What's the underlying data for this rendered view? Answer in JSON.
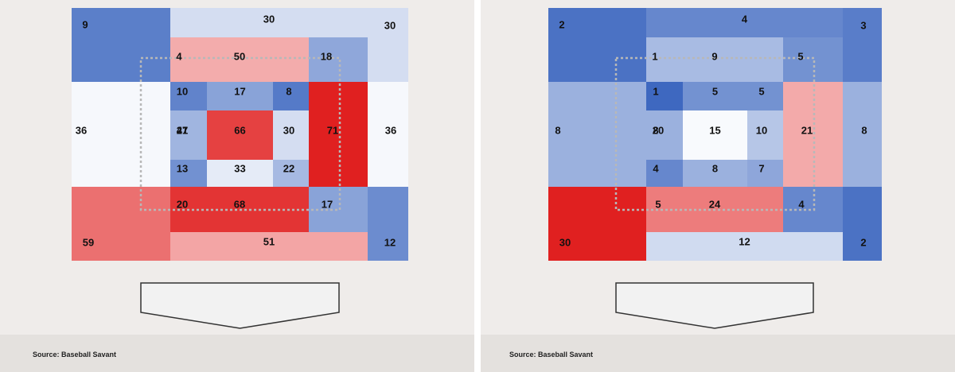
{
  "source_label": "Source: Baseball Savant",
  "colors": {
    "background": "#efecea",
    "footer": "#e4e1de",
    "scale_low": "#3e68c0",
    "scale_mid": "#ffffff",
    "scale_high": "#e02020",
    "strike_zone_outline": "#b8b8b8",
    "home_plate_fill": "#f2f2f2",
    "home_plate_stroke": "#333333"
  },
  "chart_data": [
    {
      "type": "heatmap",
      "title": "",
      "grid": false,
      "outer_zones": {
        "top_left": 9,
        "top_center": 30,
        "top_right": 30,
        "left": 36,
        "right": 36,
        "bottom_left": 59,
        "bottom_center": 51,
        "bottom_right": 12
      },
      "ring_zones": {
        "top_left": 4,
        "top_center": 50,
        "top_right": 18,
        "left": 47,
        "right": 71,
        "bottom_left": 20,
        "bottom_center": 68,
        "bottom_right": 17
      },
      "inner_zones": [
        [
          10,
          17,
          8
        ],
        [
          21,
          66,
          30
        ],
        [
          13,
          33,
          22
        ]
      ],
      "color_scale": [
        4,
        71
      ]
    },
    {
      "type": "heatmap",
      "title": "",
      "grid": false,
      "outer_zones": {
        "top_left": 2,
        "top_center": 4,
        "top_right": 3,
        "left": 8,
        "right": 8,
        "bottom_left": 30,
        "bottom_center": 12,
        "bottom_right": 2
      },
      "ring_zones": {
        "top_left": 1,
        "top_center": 9,
        "top_right": 5,
        "left": 20,
        "right": 21,
        "bottom_left": 5,
        "bottom_center": 24,
        "bottom_right": 4
      },
      "inner_zones": [
        [
          1,
          5,
          5
        ],
        [
          8,
          15,
          10
        ],
        [
          4,
          8,
          7
        ]
      ],
      "color_scale": [
        1,
        30
      ]
    }
  ]
}
